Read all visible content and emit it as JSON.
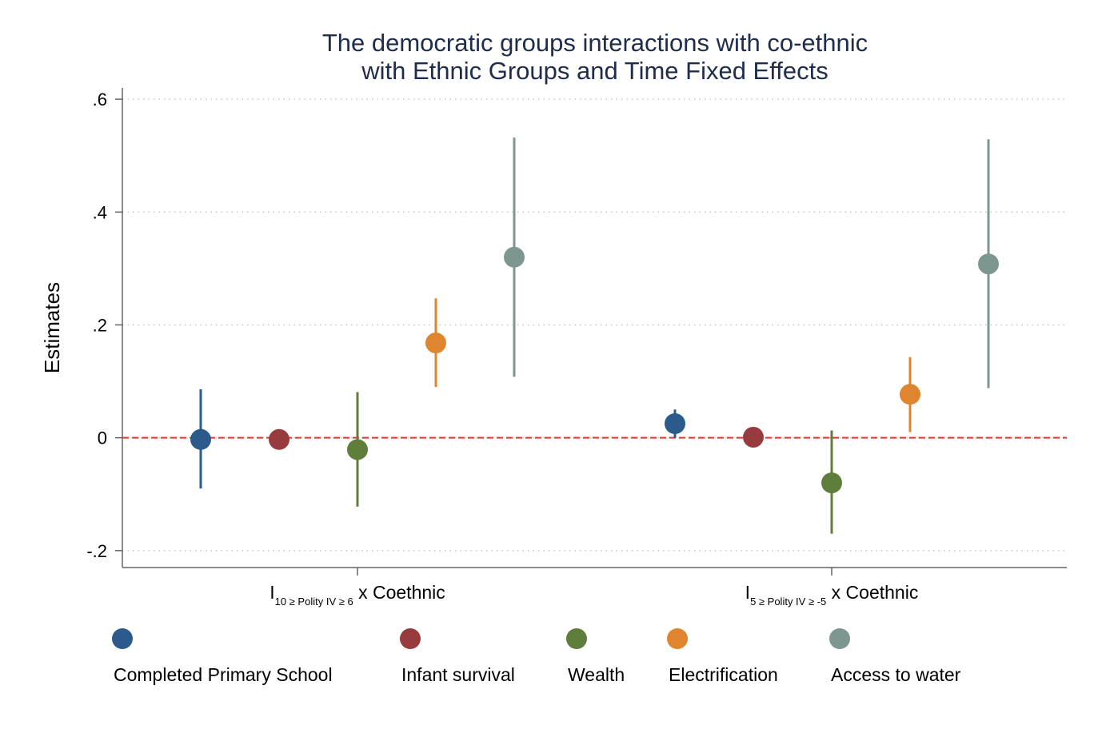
{
  "chart_data": {
    "type": "scatter",
    "title": [
      "The democratic groups interactions with co-ethnic",
      "with Ethnic Groups and Time Fixed Effects"
    ],
    "ylabel": "Estimates",
    "xlabel": "",
    "ylim": [
      -0.23,
      0.62
    ],
    "yticks": [
      {
        "value": 0.6,
        "label": ".6"
      },
      {
        "value": 0.4,
        "label": ".4"
      },
      {
        "value": 0.2,
        "label": ".2"
      },
      {
        "value": 0,
        "label": "0"
      },
      {
        "value": -0.2,
        "label": "-.2"
      }
    ],
    "grid": "horizontal-dotted",
    "reference_line": {
      "value": 0,
      "color": "#e8352a",
      "style": "dashed"
    },
    "categories": [
      {
        "main": "I",
        "sub": "10 ≥ Polity IV ≥ 6",
        "suffix": " x Coethnic"
      },
      {
        "main": "I",
        "sub": "5 ≥ Polity IV ≥ -5",
        "suffix": " x Coethnic"
      }
    ],
    "legend_position": "bottom",
    "series": [
      {
        "name": "Completed Primary School",
        "color": "#2b5a8c",
        "points": [
          {
            "estimate": -0.003,
            "lo": -0.09,
            "hi": 0.086
          },
          {
            "estimate": 0.025,
            "lo": 0.0,
            "hi": 0.05
          }
        ]
      },
      {
        "name": "Infant survival",
        "color": "#973b3f",
        "points": [
          {
            "estimate": -0.003,
            "lo": -0.003,
            "hi": -0.003
          },
          {
            "estimate": 0.001,
            "lo": 0.001,
            "hi": 0.001
          }
        ]
      },
      {
        "name": "Wealth",
        "color": "#5f7e3b",
        "points": [
          {
            "estimate": -0.021,
            "lo": -0.122,
            "hi": 0.081
          },
          {
            "estimate": -0.08,
            "lo": -0.17,
            "hi": 0.013
          }
        ]
      },
      {
        "name": "Electrification",
        "color": "#e0852f",
        "points": [
          {
            "estimate": 0.168,
            "lo": 0.09,
            "hi": 0.247
          },
          {
            "estimate": 0.077,
            "lo": 0.01,
            "hi": 0.143
          }
        ]
      },
      {
        "name": "Access to water",
        "color": "#7d9690",
        "points": [
          {
            "estimate": 0.32,
            "lo": 0.108,
            "hi": 0.532
          },
          {
            "estimate": 0.308,
            "lo": 0.088,
            "hi": 0.529
          }
        ]
      }
    ]
  }
}
